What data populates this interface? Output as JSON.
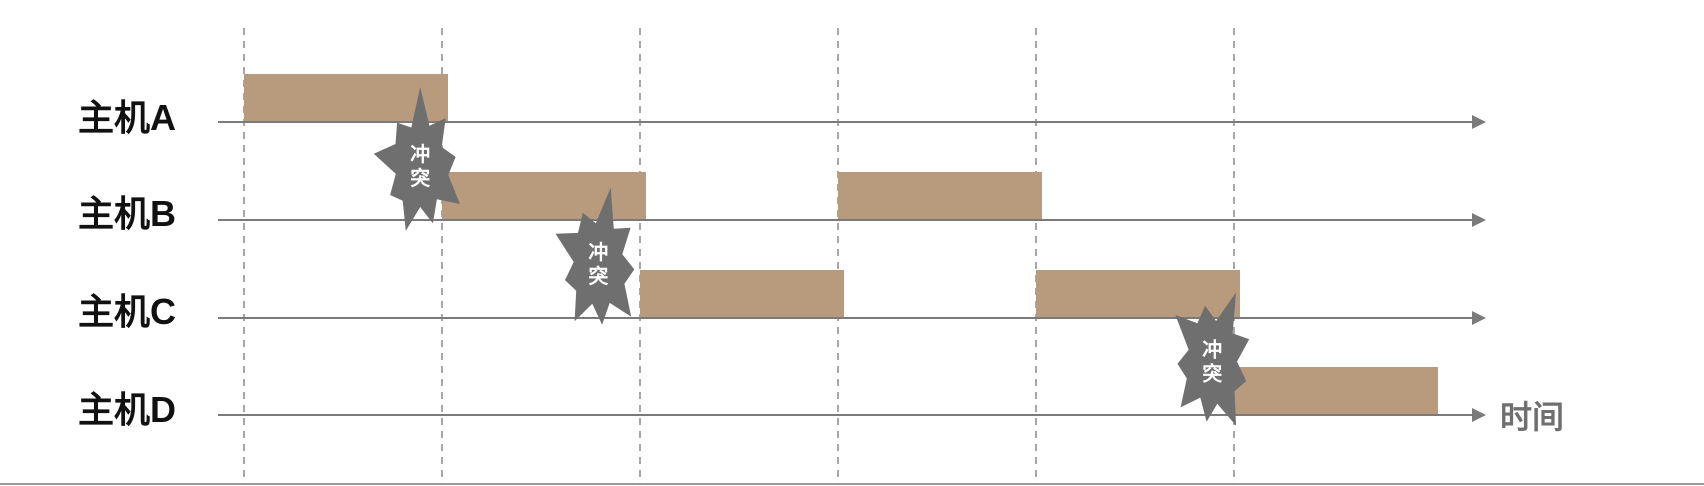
{
  "hosts": [
    {
      "label": "主机A"
    },
    {
      "label": "主机B"
    },
    {
      "label": "主机C"
    },
    {
      "label": "主机D"
    }
  ],
  "time_label": "时间",
  "conflict_label": "冲突",
  "colors": {
    "frame": "#b89b7d",
    "burst": "#6f6f6f",
    "axis": "#7a7a7a",
    "grid": "#8a8a8a"
  },
  "transmissions": [
    {
      "host": 0,
      "start": 0.0,
      "end": 1.0
    },
    {
      "host": 1,
      "start": 1.0,
      "end": 2.0
    },
    {
      "host": 1,
      "start": 3.0,
      "end": 4.0
    },
    {
      "host": 2,
      "start": 2.0,
      "end": 3.0
    },
    {
      "host": 2,
      "start": 4.0,
      "end": 5.0
    },
    {
      "host": 3,
      "start": 5.0,
      "end": 6.0
    }
  ],
  "conflicts": [
    {
      "between": [
        0,
        1
      ],
      "at": 0.9
    },
    {
      "between": [
        1,
        2
      ],
      "at": 1.8
    },
    {
      "between": [
        2,
        3
      ],
      "at": 4.9
    }
  ],
  "slot_boundaries": [
    0,
    1,
    2,
    3,
    4,
    5
  ]
}
